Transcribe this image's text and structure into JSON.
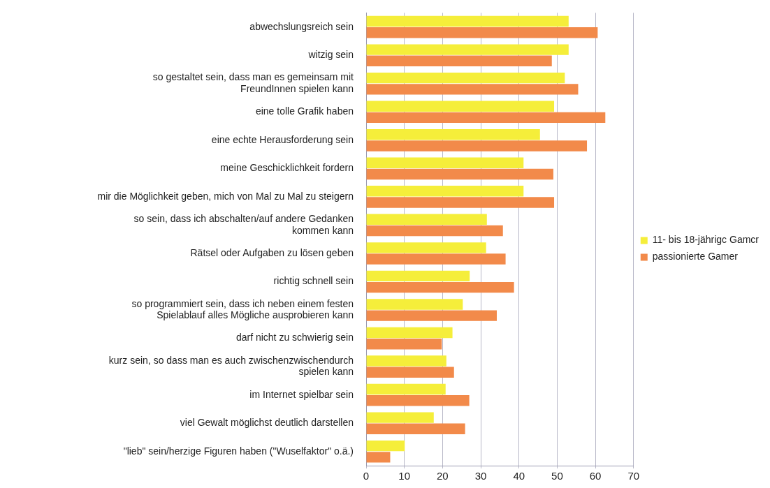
{
  "chart_data": {
    "type": "bar",
    "orientation": "horizontal",
    "categories": [
      "abwechslungsreich sein",
      "witzig sein",
      "so gestaltet sein, dass man es gemeinsam mit\nFreundInnen spielen kann",
      "eine tolle Grafik haben",
      "eine echte Herausforderung sein",
      "meine Geschicklichkeit fordern",
      "mir die Möglichkeit geben, mich von Mal zu Mal zu steigern",
      "so sein, dass ich abschalten/auf andere Gedanken\nkommen kann",
      "Rätsel oder Aufgaben zu lösen geben",
      "richtig schnell sein",
      "so programmiert sein, dass ich neben einem festen\nSpielablauf alles Mögliche ausprobieren kann",
      "darf nicht zu schwierig sein",
      "kurz sein, so dass man es auch zwischenzwischendurch\nspielen kann",
      "im Internet spielbar sein",
      "viel Gewalt möglichst deutlich darstellen",
      "\"lieb\" sein/herzige Figuren haben (\"Wuselfaktor\" o.ä.)"
    ],
    "series": [
      {
        "name": "11- bis 18-jährigc Gamcr",
        "color": "#f5ee3a",
        "values": [
          53.0,
          53.0,
          52.0,
          49.2,
          45.5,
          41.2,
          41.2,
          31.6,
          31.4,
          27.1,
          25.3,
          22.6,
          21.0,
          20.8,
          17.7,
          10.1
        ]
      },
      {
        "name": "passionierte Gamer",
        "color": "#f28a4a",
        "values": [
          60.6,
          48.6,
          55.5,
          62.6,
          57.8,
          49.0,
          49.2,
          35.8,
          36.5,
          38.7,
          34.2,
          19.8,
          23.0,
          27.0,
          25.9,
          6.3
        ]
      }
    ],
    "xlim": [
      0,
      70
    ],
    "xticks": [
      0,
      10,
      20,
      30,
      40,
      50,
      60,
      70
    ],
    "grid": "x",
    "legend": "right"
  }
}
